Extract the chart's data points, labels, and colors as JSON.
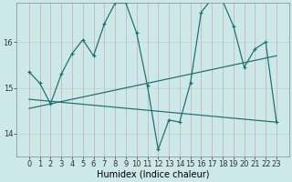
{
  "xlabel": "Humidex (Indice chaleur)",
  "background_color": "#cce8e8",
  "line_color": "#1a6e6e",
  "x_ticks": [
    0,
    1,
    2,
    3,
    4,
    5,
    6,
    7,
    8,
    9,
    10,
    11,
    12,
    13,
    14,
    15,
    16,
    17,
    18,
    19,
    20,
    21,
    22,
    23
  ],
  "ylim": [
    13.5,
    16.85
  ],
  "y_ticks": [
    14,
    15,
    16
  ],
  "series1": [
    15.35,
    15.1,
    14.65,
    15.3,
    15.75,
    16.05,
    15.7,
    16.4,
    16.85,
    16.85,
    16.2,
    15.05,
    13.65,
    14.3,
    14.25,
    15.1,
    16.65,
    16.95,
    16.9,
    16.35,
    15.45,
    15.85,
    16.0,
    14.25
  ],
  "series2_x": [
    0,
    23
  ],
  "series2_y": [
    14.55,
    15.7
  ],
  "series3_x": [
    0,
    23
  ],
  "series3_y": [
    14.75,
    14.25
  ],
  "tick_fontsize": 6,
  "xlabel_fontsize": 7
}
